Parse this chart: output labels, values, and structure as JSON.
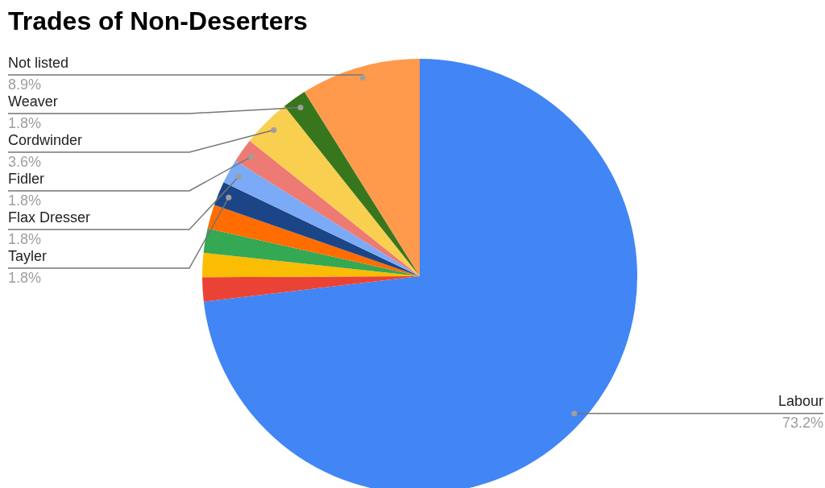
{
  "chart_data": {
    "type": "pie",
    "title": "Trades of Non-Deserters",
    "categories": [
      "Labour",
      null,
      null,
      null,
      null,
      "Tayler",
      "Flax Dresser",
      "Fidler",
      "Cordwinder",
      "Weaver",
      "Not listed"
    ],
    "values": [
      73.2,
      1.8,
      1.8,
      1.8,
      1.8,
      1.8,
      1.8,
      1.8,
      3.6,
      1.8,
      8.9
    ],
    "value_labels": [
      "73.2%",
      null,
      null,
      null,
      null,
      "1.8%",
      "1.8%",
      "1.8%",
      "3.6%",
      "1.8%",
      "8.9%"
    ],
    "colors": [
      "#4285f4",
      "#ea4335",
      "#fbbc04",
      "#34a853",
      "#ff6d01",
      "#1c4587",
      "#7baaf7",
      "#ee7b73",
      "#f9cf50",
      "#38761d",
      "#ff994c"
    ]
  }
}
